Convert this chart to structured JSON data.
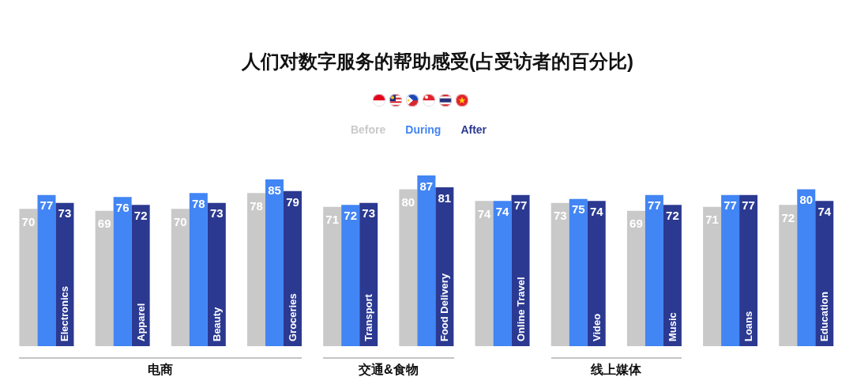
{
  "chart_data": {
    "type": "bar",
    "title": "人们对数字服务的帮助感受(占受访者的百分比)",
    "categories": [
      "Electronics",
      "Apparel",
      "Beauty",
      "Groceries",
      "Transport",
      "Food Delivery",
      "Online Travel",
      "Video",
      "Music",
      "Loans",
      "Education"
    ],
    "series": [
      {
        "name": "Before",
        "color": "#c9c9c9",
        "values": [
          70,
          69,
          70,
          78,
          71,
          80,
          74,
          73,
          69,
          71,
          72
        ]
      },
      {
        "name": "During",
        "color": "#4285f4",
        "values": [
          77,
          76,
          78,
          85,
          72,
          87,
          74,
          75,
          77,
          77,
          80
        ]
      },
      {
        "name": "After",
        "color": "#2b3990",
        "values": [
          73,
          72,
          73,
          79,
          73,
          81,
          77,
          74,
          72,
          77,
          74
        ]
      }
    ],
    "data_labels": true,
    "legend": "top",
    "tick_labels": "x",
    "annotations": [
      "电商",
      "交通&食物",
      "线上媒体"
    ]
  }
}
